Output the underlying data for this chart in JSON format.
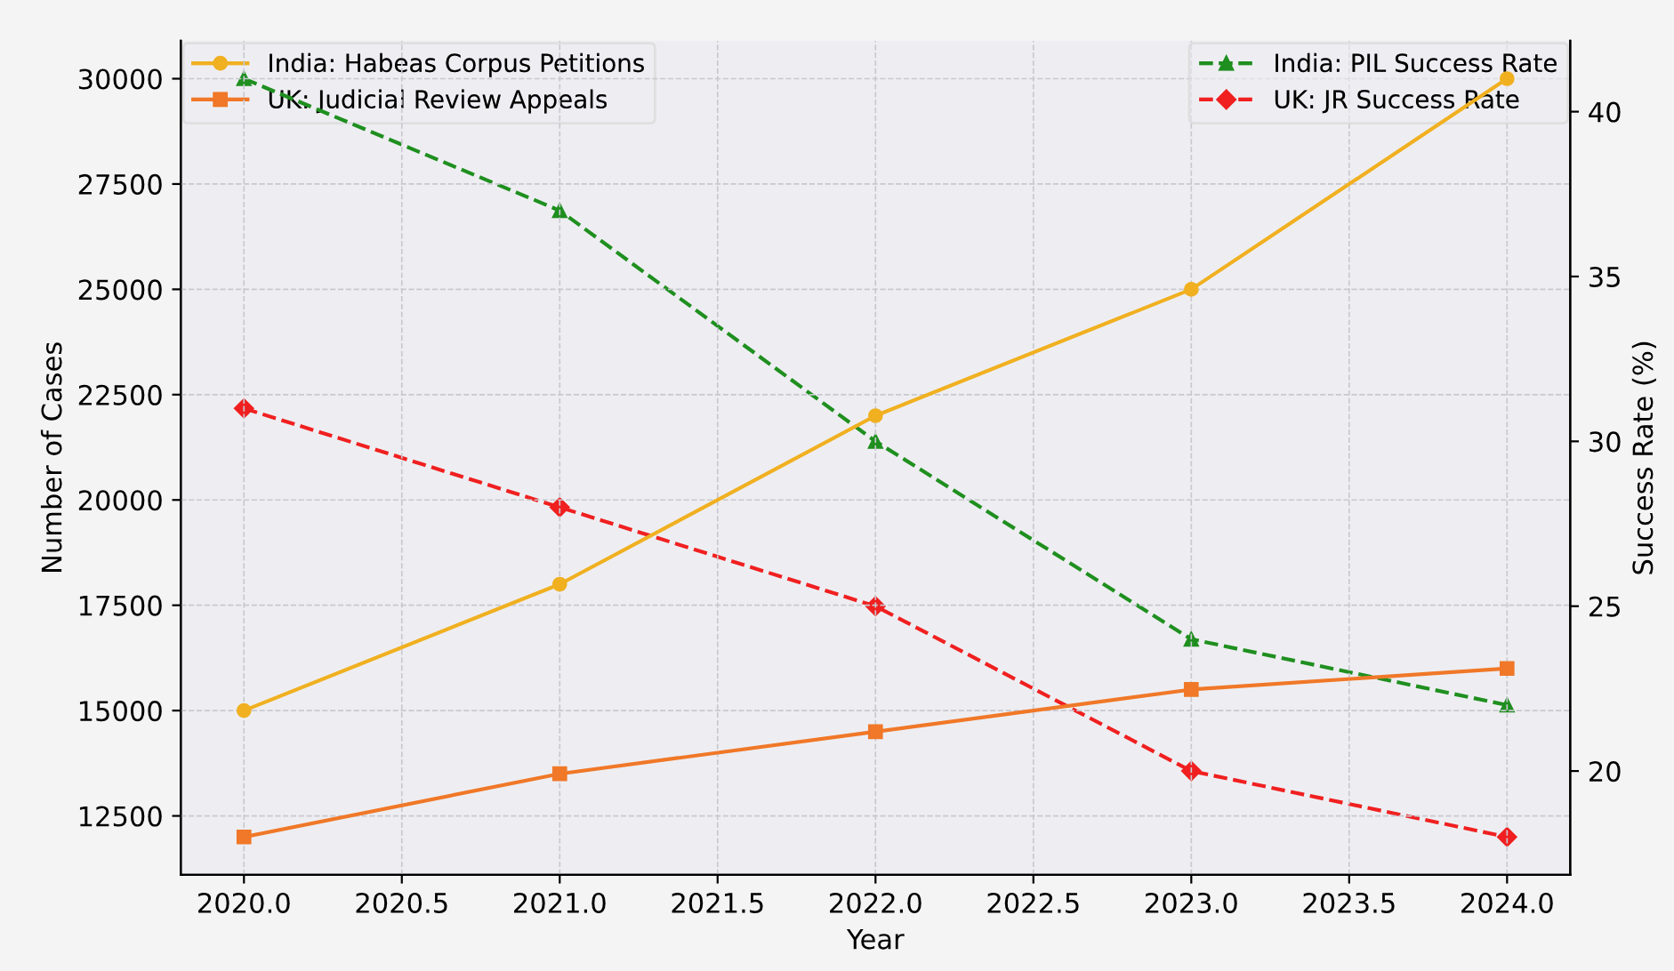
{
  "chart_data": {
    "type": "line",
    "xlabel": "Year",
    "ylabel": "Number of Cases",
    "y2label": "Success Rate (%)",
    "x": [
      2020,
      2021,
      2022,
      2023,
      2024
    ],
    "series": [
      {
        "name": "India: Habeas Corpus Petitions",
        "color": "#f0b020",
        "values": [
          15000,
          18000,
          22000,
          25000,
          30000
        ],
        "marker": "circle",
        "line_style": "solid"
      },
      {
        "name": "UK: Judicial Review Appeals",
        "color": "#f07828",
        "values": [
          12000,
          13500,
          14500,
          15500,
          16000
        ],
        "marker": "square",
        "line_style": "solid"
      },
      {
        "name": "India: PIL Success Rate",
        "color": "#1f8f1f",
        "values": [
          41,
          37,
          30,
          24,
          22
        ],
        "marker": "triangle",
        "line_style": "dashed",
        "axis": "y2"
      },
      {
        "name": "UK: JR Success Rate",
        "color": "#f02020",
        "values": [
          31,
          28,
          25,
          20,
          18
        ],
        "marker": "diamond",
        "line_style": "dashed",
        "axis": "y2"
      }
    ],
    "xlim": [
      2019.8,
      2024.2
    ],
    "xticks": [
      {
        "value": 2020,
        "label": "2020.0"
      },
      {
        "value": 2020.5,
        "label": "2020.5"
      },
      {
        "value": 2021,
        "label": "2021.0"
      },
      {
        "value": 2021.5,
        "label": "2021.5"
      },
      {
        "value": 2022,
        "label": "2022.0"
      },
      {
        "value": 2022.5,
        "label": "2022.5"
      },
      {
        "value": 2023,
        "label": "2023.0"
      },
      {
        "value": 2023.5,
        "label": "2023.5"
      },
      {
        "value": 2024,
        "label": "2024.0"
      }
    ],
    "ylim": [
      11100,
      30900
    ],
    "yticks": [
      12500,
      15000,
      17500,
      20000,
      22500,
      25000,
      27500,
      30000
    ],
    "y2lim": [
      16.85,
      42.15
    ],
    "y2ticks": [
      20,
      25,
      30,
      35,
      40
    ],
    "grid": true,
    "legend": "top"
  }
}
